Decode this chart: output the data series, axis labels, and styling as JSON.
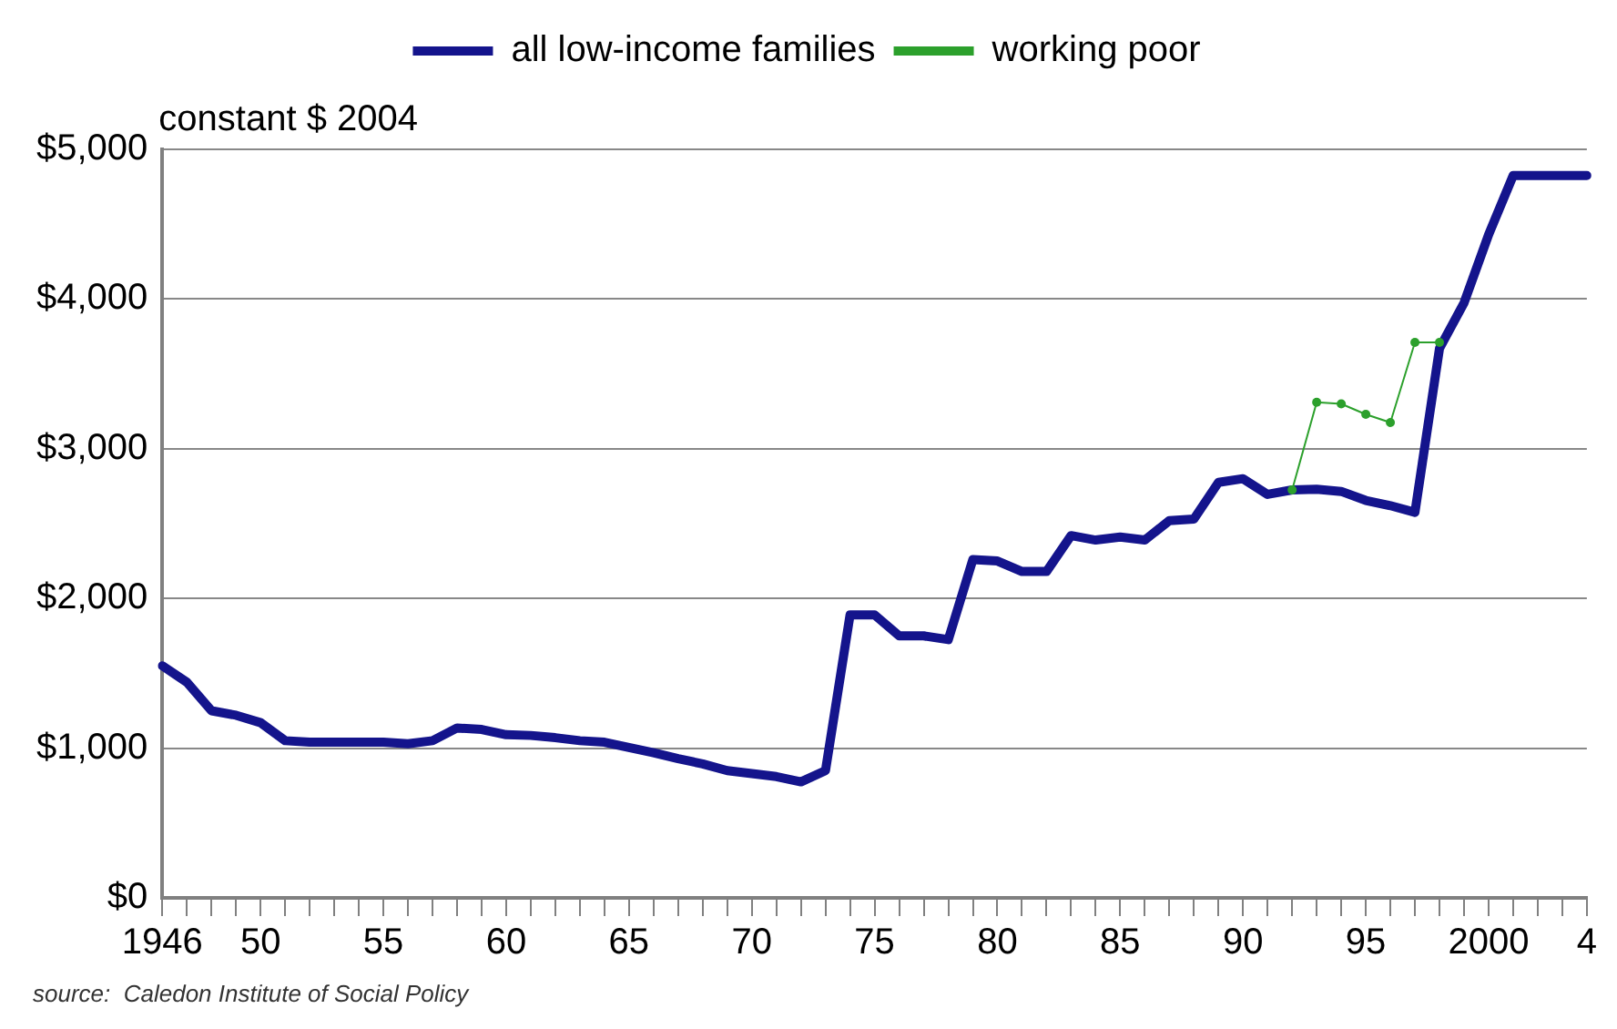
{
  "chart_data": {
    "type": "line",
    "ylabel": "constant $ 2004",
    "annotations": [
      "source:  Caledon Institute of Social Policy"
    ],
    "categories": [
      "1946",
      null,
      null,
      null,
      "50",
      null,
      null,
      null,
      null,
      "55",
      null,
      null,
      null,
      null,
      "60",
      null,
      null,
      null,
      null,
      "65",
      null,
      null,
      null,
      null,
      "70",
      null,
      null,
      null,
      null,
      "75",
      null,
      null,
      null,
      null,
      "80",
      null,
      null,
      null,
      null,
      "85",
      null,
      null,
      null,
      null,
      "90",
      null,
      null,
      null,
      null,
      "95",
      null,
      null,
      null,
      null,
      "2000",
      null,
      null,
      null,
      "4"
    ],
    "series": [
      {
        "name": "all low-income families",
        "color": "#14148c",
        "marker": "none",
        "values": [
          1550,
          1440,
          1250,
          1220,
          1170,
          1050,
          1040,
          1040,
          1040,
          1040,
          1030,
          1050,
          1135,
          1125,
          1090,
          1085,
          1070,
          1050,
          1040,
          1005,
          970,
          930,
          895,
          850,
          830,
          810,
          775,
          850,
          1890,
          1890,
          1750,
          1750,
          1725,
          2260,
          2250,
          2180,
          2180,
          2420,
          2390,
          2410,
          2390,
          2520,
          2530,
          2775,
          2800,
          2695,
          2725,
          2730,
          2715,
          2655,
          2620,
          2575,
          3670,
          3975,
          4430,
          4825,
          4825,
          4825,
          4825
        ]
      },
      {
        "name": "working poor",
        "color": "#2ca02c",
        "marker": "circle",
        "values": [
          null,
          null,
          null,
          null,
          null,
          null,
          null,
          null,
          null,
          null,
          null,
          null,
          null,
          null,
          null,
          null,
          null,
          null,
          null,
          null,
          null,
          null,
          null,
          null,
          null,
          null,
          null,
          null,
          null,
          null,
          null,
          null,
          null,
          null,
          null,
          null,
          null,
          null,
          null,
          null,
          null,
          null,
          null,
          null,
          null,
          null,
          2725,
          3310,
          3300,
          3230,
          3175,
          3710,
          3710,
          null,
          null,
          null,
          null,
          null,
          null
        ]
      }
    ],
    "ylim": [
      0,
      5000
    ],
    "yticks": [
      {
        "value": 0,
        "label": "$0"
      },
      {
        "value": 1000,
        "label": "$1,000"
      },
      {
        "value": 2000,
        "label": "$2,000"
      },
      {
        "value": 3000,
        "label": "$3,000"
      },
      {
        "value": 4000,
        "label": "$4,000"
      },
      {
        "value": 5000,
        "label": "$5,000"
      }
    ],
    "grid": "y",
    "legend": "top",
    "line_style": "solid"
  }
}
